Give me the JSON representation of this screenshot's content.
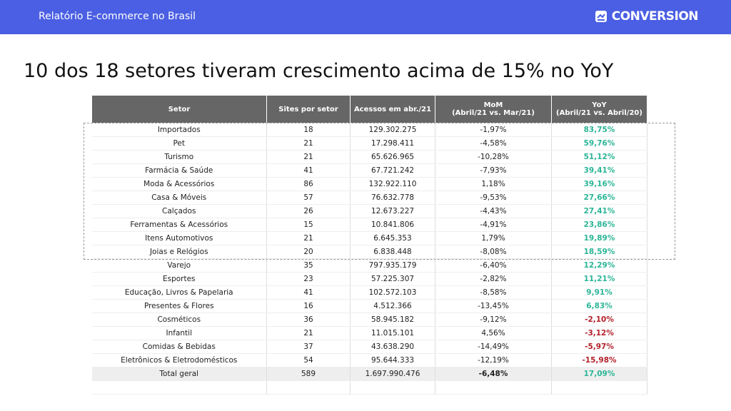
{
  "header": {
    "title": "Relatório E-commerce no Brasil",
    "logo": "CONVERSION"
  },
  "title": "10 dos 18 setores tiveram crescimento acima de 15% no YoY",
  "table": {
    "columns": [
      {
        "label": "Setor"
      },
      {
        "label": "Sites por setor"
      },
      {
        "label": "Acessos em abr./21"
      },
      {
        "label": "MoM",
        "sub": "(Abril/21 vs. Mar/21)"
      },
      {
        "label": "YoY",
        "sub": "(Abril/21 vs. Abril/20)"
      }
    ],
    "rows": [
      [
        "Importados",
        "18",
        "129.302.275",
        "-1,97%",
        "83,75%"
      ],
      [
        "Pet",
        "21",
        "17.298.411",
        "-4,58%",
        "59,76%"
      ],
      [
        "Turismo",
        "21",
        "65.626.965",
        "-10,28%",
        "51,12%"
      ],
      [
        "Farmácia & Saúde",
        "41",
        "67.721.242",
        "-7,93%",
        "39,41%"
      ],
      [
        "Moda & Acessórios",
        "86",
        "132.922.110",
        "1,18%",
        "39,16%"
      ],
      [
        "Casa & Móveis",
        "57",
        "76.632.778",
        "-9,53%",
        "27,66%"
      ],
      [
        "Calçados",
        "26",
        "12.673.227",
        "-4,43%",
        "27,41%"
      ],
      [
        "Ferramentas & Acessórios",
        "15",
        "10.841.806",
        "-4,91%",
        "23,86%"
      ],
      [
        "Itens Automotivos",
        "21",
        "6.645.353",
        "1,79%",
        "19,89%"
      ],
      [
        "Joias e Relógios",
        "20",
        "6.838.448",
        "-8,08%",
        "18,59%"
      ],
      [
        "Varejo",
        "35",
        "797.935.179",
        "-6,40%",
        "12,29%"
      ],
      [
        "Esportes",
        "23",
        "57.225.307",
        "-2,82%",
        "11,21%"
      ],
      [
        "Educação, Livros & Papelaria",
        "41",
        "102.572.103",
        "-8,58%",
        "9,91%"
      ],
      [
        "Presentes & Flores",
        "16",
        "4.512.366",
        "-13,45%",
        "6,83%"
      ],
      [
        "Cosméticos",
        "36",
        "58.945.182",
        "-9,12%",
        "-2,10%"
      ],
      [
        "Infantil",
        "21",
        "11.015.101",
        "4,56%",
        "-3,12%"
      ],
      [
        "Comidas & Bebidas",
        "37",
        "43.638.290",
        "-14,49%",
        "-5,97%"
      ],
      [
        "Eletrônicos & Eletrodomésticos",
        "54",
        "95.644.333",
        "-12,19%",
        "-15,98%"
      ]
    ],
    "total": [
      "Total geral",
      "589",
      "1.697.990.476",
      "-6,48%",
      "17,09%"
    ],
    "highlighted_rows": 10,
    "positive_color": "#2bb597",
    "negative_color": "#b3202a"
  }
}
